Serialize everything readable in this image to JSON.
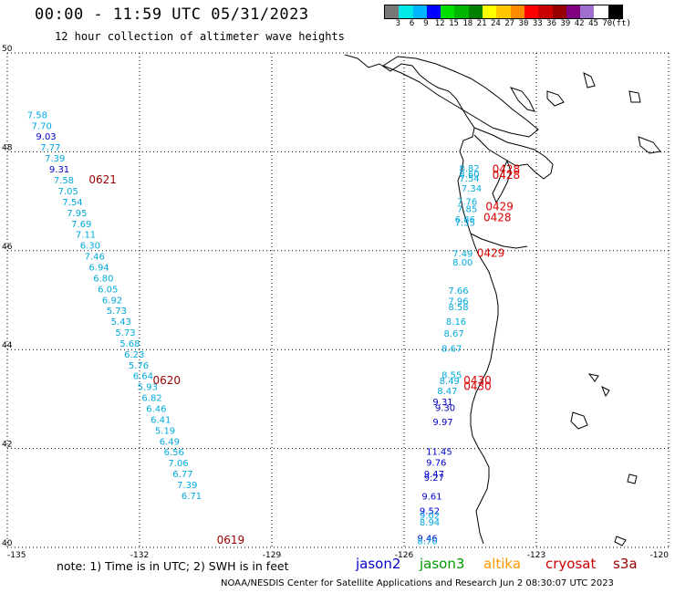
{
  "header": {
    "title": "00:00 - 11:59 UTC 05/31/2023",
    "subtitle": "12 hour collection of altimeter wave heights"
  },
  "colorbar": {
    "colors": [
      "#777777",
      "#00e8e8",
      "#00b4ff",
      "#0000ff",
      "#00e000",
      "#00b400",
      "#008000",
      "#ffff00",
      "#ffc800",
      "#ff8c00",
      "#ff0000",
      "#c80000",
      "#960000",
      "#800080",
      "#a070d0",
      "#ffffff",
      "#000000"
    ],
    "labels": [
      "3",
      "6",
      "9",
      "12",
      "15",
      "18",
      "21",
      "24",
      "27",
      "30",
      "33",
      "36",
      "39",
      "42",
      "45",
      "70",
      "(ft)"
    ]
  },
  "axes": {
    "lon_ticks": [
      "-135",
      "-132",
      "-129",
      "-126",
      "-123",
      "-120"
    ],
    "lat_ticks": [
      "50",
      "48",
      "46",
      "44",
      "42",
      "40"
    ]
  },
  "legend": {
    "note": "note: 1) Time is in UTC; 2) SWH is in feet",
    "satellites": [
      {
        "name": "jason2",
        "color": "#0000cc"
      },
      {
        "name": "jason3",
        "color": "#009900"
      },
      {
        "name": "altika",
        "color": "#ff9900"
      },
      {
        "name": "cryosat",
        "color": "#cc0000"
      },
      {
        "name": "s3a",
        "color": "#990000"
      }
    ]
  },
  "footer": "NOAA/NESDIS Center for Satellite Applications and Research   Jun  2 08:30:07 UTC 2023",
  "wave_labels": [
    {
      "text": "7.58",
      "lon": -134.55,
      "lat": 48.68,
      "color": "#00aadd"
    },
    {
      "text": "7.70",
      "lon": -134.45,
      "lat": 48.46,
      "color": "#00aadd"
    },
    {
      "text": "9.03",
      "lon": -134.35,
      "lat": 48.25,
      "color": "#0000cc"
    },
    {
      "text": "7.77",
      "lon": -134.25,
      "lat": 48.03,
      "color": "#00aadd"
    },
    {
      "text": "7.39",
      "lon": -134.15,
      "lat": 47.8,
      "color": "#00aadd"
    },
    {
      "text": "9.31",
      "lon": -134.05,
      "lat": 47.58,
      "color": "#0000cc"
    },
    {
      "text": "7.58",
      "lon": -133.95,
      "lat": 47.36,
      "color": "#00aadd"
    },
    {
      "text": "7.05",
      "lon": -133.85,
      "lat": 47.14,
      "color": "#00aadd"
    },
    {
      "text": "7.54",
      "lon": -133.75,
      "lat": 46.92,
      "color": "#00aadd"
    },
    {
      "text": "7.95",
      "lon": -133.65,
      "lat": 46.7,
      "color": "#00aadd"
    },
    {
      "text": "7.69",
      "lon": -133.55,
      "lat": 46.48,
      "color": "#00aadd"
    },
    {
      "text": "7.11",
      "lon": -133.45,
      "lat": 46.26,
      "color": "#00aadd"
    },
    {
      "text": "6.30",
      "lon": -133.35,
      "lat": 46.04,
      "color": "#00aadd"
    },
    {
      "text": "7.46",
      "lon": -133.25,
      "lat": 45.82,
      "color": "#00aadd"
    },
    {
      "text": "6.94",
      "lon": -133.15,
      "lat": 45.6,
      "color": "#00aadd"
    },
    {
      "text": "6.80",
      "lon": -133.05,
      "lat": 45.38,
      "color": "#00aadd"
    },
    {
      "text": "6.05",
      "lon": -132.95,
      "lat": 45.16,
      "color": "#00aadd"
    },
    {
      "text": "6.92",
      "lon": -132.85,
      "lat": 44.94,
      "color": "#00aadd"
    },
    {
      "text": "5.73",
      "lon": -132.75,
      "lat": 44.72,
      "color": "#00aadd"
    },
    {
      "text": "5.43",
      "lon": -132.65,
      "lat": 44.5,
      "color": "#00aadd"
    },
    {
      "text": "5.73",
      "lon": -132.55,
      "lat": 44.28,
      "color": "#00aadd"
    },
    {
      "text": "5.68",
      "lon": -132.45,
      "lat": 44.06,
      "color": "#00aadd"
    },
    {
      "text": "6.23",
      "lon": -132.35,
      "lat": 43.84,
      "color": "#00aadd"
    },
    {
      "text": "5.76",
      "lon": -132.25,
      "lat": 43.62,
      "color": "#00aadd"
    },
    {
      "text": "6.64",
      "lon": -132.15,
      "lat": 43.4,
      "color": "#00aadd"
    },
    {
      "text": "5.93",
      "lon": -132.05,
      "lat": 43.18,
      "color": "#00aadd"
    },
    {
      "text": "6.82",
      "lon": -131.95,
      "lat": 42.96,
      "color": "#00aadd"
    },
    {
      "text": "6.46",
      "lon": -131.85,
      "lat": 42.74,
      "color": "#00aadd"
    },
    {
      "text": "6.41",
      "lon": -131.75,
      "lat": 42.52,
      "color": "#00aadd"
    },
    {
      "text": "5.19",
      "lon": -131.65,
      "lat": 42.3,
      "color": "#00aadd"
    },
    {
      "text": "6.49",
      "lon": -131.55,
      "lat": 42.08,
      "color": "#00aadd"
    },
    {
      "text": "6.56",
      "lon": -131.45,
      "lat": 41.86,
      "color": "#00aadd"
    },
    {
      "text": "7.06",
      "lon": -131.35,
      "lat": 41.64,
      "color": "#00aadd"
    },
    {
      "text": "6.77",
      "lon": -131.25,
      "lat": 41.42,
      "color": "#00aadd"
    },
    {
      "text": "7.39",
      "lon": -131.15,
      "lat": 41.2,
      "color": "#00aadd"
    },
    {
      "text": "6.71",
      "lon": -131.05,
      "lat": 40.98,
      "color": "#00aadd"
    },
    {
      "text": "8.82",
      "lon": -124.75,
      "lat": 47.6,
      "color": "#00aadd"
    },
    {
      "text": "8.60",
      "lon": -124.75,
      "lat": 47.48,
      "color": "#00aadd"
    },
    {
      "text": "7.54",
      "lon": -124.75,
      "lat": 47.4,
      "color": "#00aadd"
    },
    {
      "text": "7.34",
      "lon": -124.7,
      "lat": 47.2,
      "color": "#00aadd"
    },
    {
      "text": "7.76",
      "lon": -124.8,
      "lat": 46.93,
      "color": "#00aadd"
    },
    {
      "text": "7.85",
      "lon": -124.8,
      "lat": 46.78,
      "color": "#00aadd"
    },
    {
      "text": "6.86",
      "lon": -124.85,
      "lat": 46.57,
      "color": "#00aadd"
    },
    {
      "text": "7.35",
      "lon": -124.85,
      "lat": 46.5,
      "color": "#00aadd"
    },
    {
      "text": "7.49",
      "lon": -124.9,
      "lat": 45.88,
      "color": "#00aadd"
    },
    {
      "text": "8.00",
      "lon": -124.9,
      "lat": 45.7,
      "color": "#00aadd"
    },
    {
      "text": "7.66",
      "lon": -125.0,
      "lat": 45.13,
      "color": "#00aadd"
    },
    {
      "text": "7.96",
      "lon": -125.0,
      "lat": 44.92,
      "color": "#00aadd"
    },
    {
      "text": "8.58",
      "lon": -125.0,
      "lat": 44.8,
      "color": "#00aadd"
    },
    {
      "text": "8.16",
      "lon": -125.05,
      "lat": 44.5,
      "color": "#00aadd"
    },
    {
      "text": "8.67",
      "lon": -125.1,
      "lat": 44.26,
      "color": "#00aadd"
    },
    {
      "text": "8.67",
      "lon": -125.15,
      "lat": 43.96,
      "color": "#00aadd"
    },
    {
      "text": "8.55",
      "lon": -125.15,
      "lat": 43.42,
      "color": "#00aadd"
    },
    {
      "text": "8.49",
      "lon": -125.2,
      "lat": 43.3,
      "color": "#00aadd"
    },
    {
      "text": "8.47",
      "lon": -125.25,
      "lat": 43.1,
      "color": "#00aadd"
    },
    {
      "text": "9.31",
      "lon": -125.35,
      "lat": 42.88,
      "color": "#0000cc"
    },
    {
      "text": "9.30",
      "lon": -125.3,
      "lat": 42.76,
      "color": "#0000cc"
    },
    {
      "text": "9.97",
      "lon": -125.35,
      "lat": 42.47,
      "color": "#0000cc"
    },
    {
      "text": "11.45",
      "lon": -125.5,
      "lat": 41.87,
      "color": "#0000cc"
    },
    {
      "text": "9.76",
      "lon": -125.5,
      "lat": 41.65,
      "color": "#0000cc"
    },
    {
      "text": "9.47",
      "lon": -125.55,
      "lat": 41.42,
      "color": "#0000cc"
    },
    {
      "text": "9.27",
      "lon": -125.55,
      "lat": 41.35,
      "color": "#0000cc"
    },
    {
      "text": "9.61",
      "lon": -125.6,
      "lat": 40.97,
      "color": "#0000cc"
    },
    {
      "text": "9.52",
      "lon": -125.65,
      "lat": 40.67,
      "color": "#0000cc"
    },
    {
      "text": "9.02",
      "lon": -125.65,
      "lat": 40.58,
      "color": "#00aadd"
    },
    {
      "text": "8.94",
      "lon": -125.65,
      "lat": 40.44,
      "color": "#00aadd"
    },
    {
      "text": "9.46",
      "lon": -125.7,
      "lat": 40.12,
      "color": "#0000cc"
    },
    {
      "text": "8.70",
      "lon": -125.7,
      "lat": 40.06,
      "color": "#00aadd"
    }
  ],
  "time_labels": [
    {
      "text": "0621",
      "lon": -133.15,
      "lat": 47.36,
      "color": "#990000"
    },
    {
      "text": "0620",
      "lon": -131.7,
      "lat": 43.3,
      "color": "#990000"
    },
    {
      "text": "0619",
      "lon": -130.25,
      "lat": 40.07,
      "color": "#990000"
    },
    {
      "text": "0428",
      "lon": -124.0,
      "lat": 47.57,
      "color": "#dd0000"
    },
    {
      "text": "0428",
      "lon": -124.0,
      "lat": 47.45,
      "color": "#dd0000"
    },
    {
      "text": "0429",
      "lon": -124.15,
      "lat": 46.82,
      "color": "#dd0000"
    },
    {
      "text": "0428",
      "lon": -124.2,
      "lat": 46.6,
      "color": "#dd0000"
    },
    {
      "text": "0429",
      "lon": -124.35,
      "lat": 45.88,
      "color": "#dd0000"
    },
    {
      "text": "0430",
      "lon": -124.65,
      "lat": 43.3,
      "color": "#dd0000"
    },
    {
      "text": "0430",
      "lon": -124.65,
      "lat": 43.18,
      "color": "#dd0000"
    }
  ]
}
